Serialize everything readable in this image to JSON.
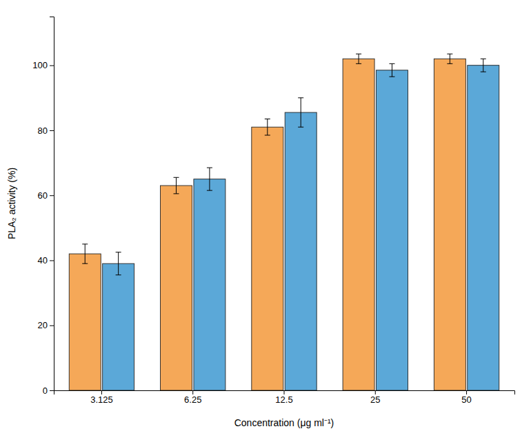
{
  "chart_data": {
    "type": "bar",
    "categories": [
      "3.125",
      "6.25",
      "12.5",
      "25",
      "50"
    ],
    "series": [
      {
        "color": "#F5A858",
        "values": [
          42,
          63,
          81,
          102,
          102
        ],
        "errors": [
          3,
          2.5,
          2.5,
          1.5,
          1.5
        ]
      },
      {
        "color": "#5BA8D8",
        "values": [
          39,
          65,
          85.5,
          98.5,
          100
        ],
        "errors": [
          3.5,
          3.5,
          4.5,
          2,
          2
        ]
      }
    ],
    "xlabel": "Concentration (μg ml⁻¹)",
    "ylabel": "PLA₂ activity (%)",
    "ylim": [
      0,
      115
    ],
    "yticks": [
      0,
      20,
      40,
      60,
      80,
      100
    ],
    "grid": false
  }
}
